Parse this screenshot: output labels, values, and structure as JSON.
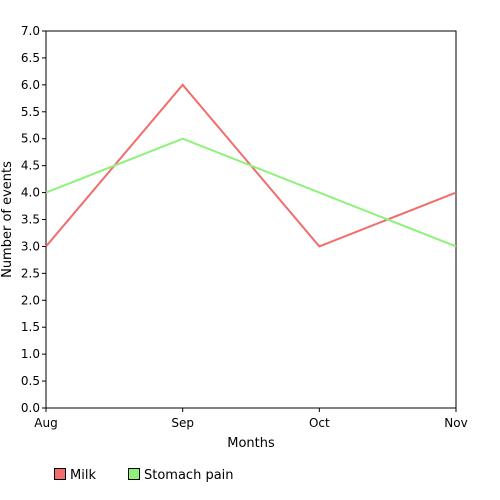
{
  "chart_data": {
    "type": "line",
    "categories": [
      "Aug",
      "Sep",
      "Oct",
      "Nov"
    ],
    "series": [
      {
        "name": "Milk",
        "values": [
          3.0,
          6.0,
          3.0,
          4.0
        ],
        "color": "#f26d6d"
      },
      {
        "name": "Stomach pain",
        "values": [
          4.0,
          5.0,
          4.0,
          3.0
        ],
        "color": "#8ef27a"
      }
    ],
    "title": "",
    "xlabel": "Months",
    "ylabel": "Number of events",
    "ylim": [
      0,
      7
    ],
    "yticks": [
      "0.0",
      "0.5",
      "1.0",
      "1.5",
      "2.0",
      "2.5",
      "3.0",
      "3.5",
      "4.0",
      "4.5",
      "5.0",
      "5.5",
      "6.0",
      "6.5",
      "7.0"
    ],
    "grid": false,
    "legend_position": "bottom-left"
  }
}
